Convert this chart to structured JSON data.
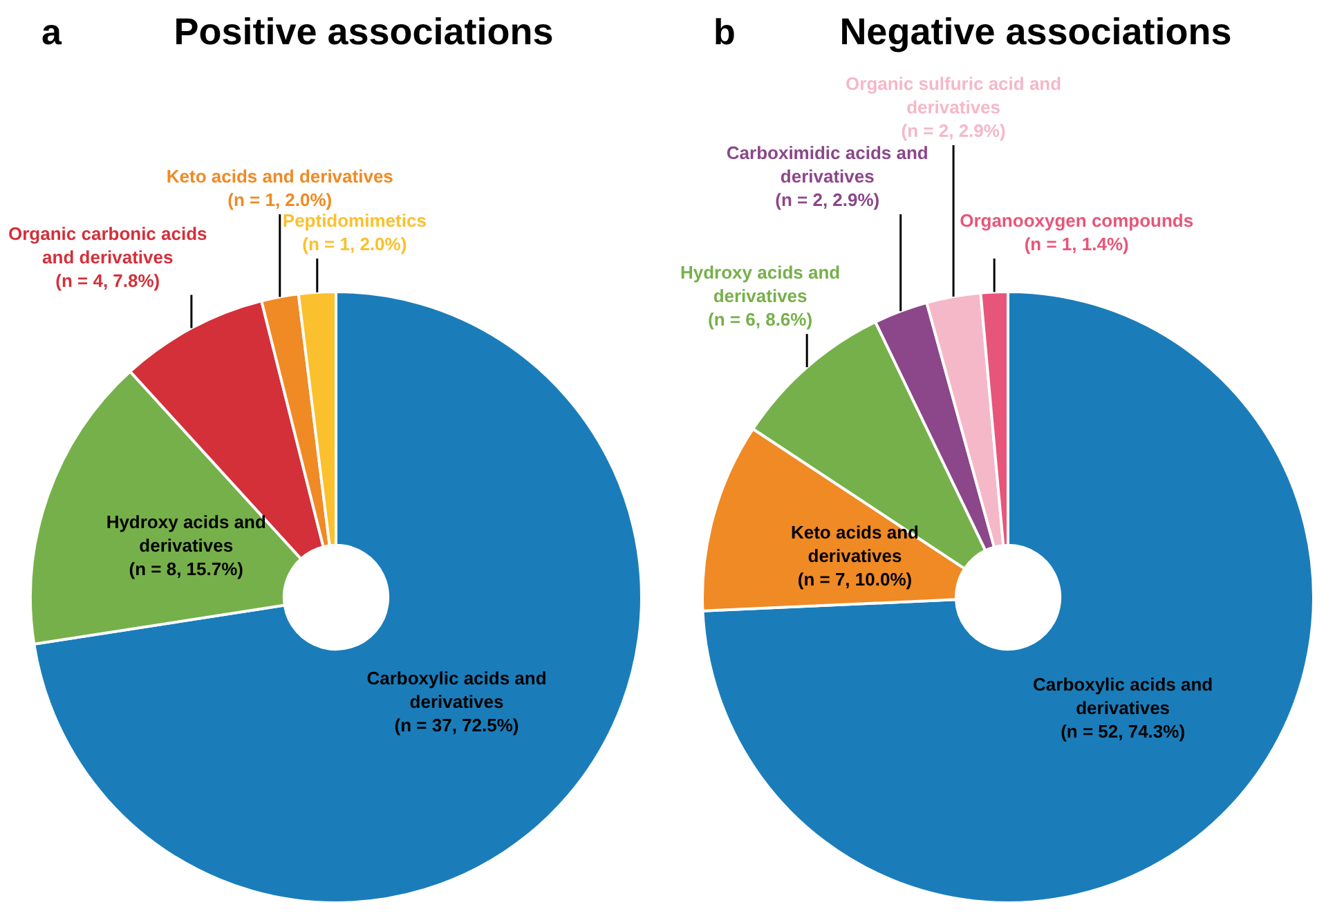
{
  "chart_data": [
    {
      "type": "donut",
      "title": "Positive associations",
      "annotations": [
        "a"
      ],
      "categories": [
        "Carboxylic acids and derivatives",
        "Hydroxy acids and derivatives",
        "Organic carbonic acids and derivatives",
        "Keto acids and derivatives",
        "Peptidomimetics"
      ],
      "values": [
        37,
        8,
        4,
        1,
        1
      ],
      "value_labels": [
        "(n = 37, 72.5%)",
        "(n = 8, 15.7%)",
        "(n = 4, 7.8%)",
        "(n = 1, 2.0%)",
        "(n = 1, 2.0%)"
      ],
      "colors": [
        "#1a7dba",
        "#76b04a",
        "#d3303a",
        "#ef8a25",
        "#fbc02d"
      ]
    },
    {
      "type": "donut",
      "title": "Negative associations",
      "annotations": [
        "b"
      ],
      "categories": [
        "Carboxylic acids and derivatives",
        "Keto acids and derivatives",
        "Hydroxy acids and derivatives",
        "Carboximidic acids and derivatives",
        "Organic sulfuric acid and derivatives",
        "Organooxygen compounds"
      ],
      "values": [
        52,
        7,
        6,
        2,
        2,
        1
      ],
      "value_labels": [
        "(n = 52, 74.3%)",
        "(n = 7, 10.0%)",
        "(n = 6, 8.6%)",
        "(n = 2, 2.9%)",
        "(n = 2, 2.9%)",
        "(n = 1, 1.4%)"
      ],
      "colors": [
        "#1a7dba",
        "#ef8a25",
        "#76b04a",
        "#8b4789",
        "#f5b8c8",
        "#e8557a"
      ]
    }
  ]
}
